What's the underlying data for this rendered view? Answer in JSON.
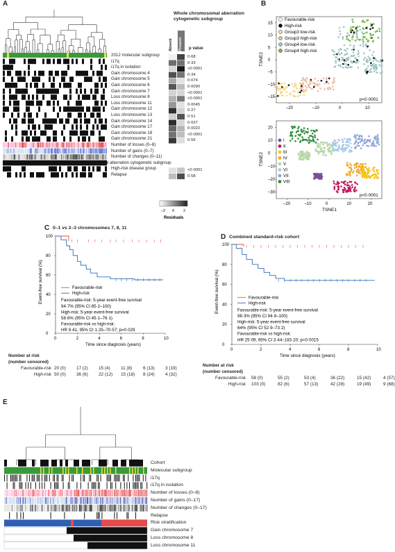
{
  "panelA": {
    "letter": "A",
    "title": "Whole chromosomal aberration cytogenetic subgroup",
    "col_absent": "Absent",
    "col_present": "Present",
    "pvalue_header": "p value",
    "rows": [
      {
        "label": "2012 molecular subgroup",
        "p": "0·68"
      },
      {
        "label": "i17q",
        "p": "0·33"
      },
      {
        "label": "i17q in isolation",
        "p": "<0·0001"
      },
      {
        "label": "Gain chromosome 4",
        "p": "0·34"
      },
      {
        "label": "Gain chromosome 5",
        "p": "0·074"
      },
      {
        "label": "Gain chromosome 6",
        "p": "0·0090"
      },
      {
        "label": "Gain chromosome 7",
        "p": "<0·0001"
      },
      {
        "label": "Loss chromosome 8",
        "p": "<0·0001"
      },
      {
        "label": "Loss chromosome 11",
        "p": "0·0045"
      },
      {
        "label": "Gain chromosome 12",
        "p": "0·27"
      },
      {
        "label": "Loss chromosome 13",
        "p": "0·51"
      },
      {
        "label": "Gain chromosome 14",
        "p": "0·037"
      },
      {
        "label": "Gain chromosome 17",
        "p": "0·0022"
      },
      {
        "label": "Gain chromosome 18",
        "p": "<0·0001"
      },
      {
        "label": "Gain chromosome 21",
        "p": "0·56"
      }
    ],
    "extra_rows": [
      {
        "label": "Number of losses (0–8)"
      },
      {
        "label": "Number of gains (0–7)"
      },
      {
        "label": "Number of changes (0–11)"
      },
      {
        "label": "Whole chromosomal aberration cytogenetic subgroup"
      },
      {
        "label": "High-risk disease group",
        "p": "<0·0001"
      },
      {
        "label": "Relapse",
        "p": "0·58"
      }
    ],
    "legend_ticks": [
      "–2",
      "0",
      "2"
    ],
    "legend_title": "Residuals"
  },
  "panelB": {
    "letter": "B",
    "top": {
      "legend": [
        {
          "label": "Favourable-risk",
          "color": "#ffffff"
        },
        {
          "label": "High-risk",
          "color": "#111111"
        },
        {
          "label": "Group3 low-risk",
          "color": "#f6d98b"
        },
        {
          "label": "Group3 high-risk",
          "color": "#f0b8a0"
        },
        {
          "label": "Group4 low-risk",
          "color": "#9fc4c4"
        },
        {
          "label": "Group4 high-risk",
          "color": "#7ab648"
        }
      ],
      "ylabel": "TSNE2",
      "xticks": [
        "–20",
        "–10",
        "0",
        "10"
      ],
      "yticks": [
        "15",
        "10",
        "5",
        "0",
        "–5",
        "–10",
        "–15"
      ],
      "pvalue": "p<0·0001"
    },
    "bottom": {
      "legend": [
        {
          "label": "I",
          "color": "#7a4fa0"
        },
        {
          "label": "II",
          "color": "#c2185b"
        },
        {
          "label": "III",
          "color": "#f5c518"
        },
        {
          "label": "IV",
          "color": "#f5a623"
        },
        {
          "label": "V",
          "color": "#b7d7a8"
        },
        {
          "label": "VI",
          "color": "#a8c8e8"
        },
        {
          "label": "VII",
          "color": "#8fa6d6"
        },
        {
          "label": "VIII",
          "color": "#2e8b3a"
        }
      ],
      "ylabel": "TSNE2",
      "xlabel": "TSNE1",
      "xticks": [
        "–20",
        "–10",
        "0",
        "10",
        "20"
      ],
      "yticks": [
        "20",
        "10",
        "0",
        "–10",
        "–20",
        "–30"
      ],
      "pvalue": "p<0·0001"
    }
  },
  "panelC": {
    "letter": "C",
    "title": "0–1 vs 2–3 chromosomes 7, 8, 11",
    "ylabel": "Event-free survival (%)",
    "xlabel": "Time since diagnosis (years)",
    "yticks": [
      "100",
      "80",
      "60",
      "40",
      "20",
      "0"
    ],
    "xticks": [
      "0",
      "2",
      "4",
      "6",
      "8",
      "10"
    ],
    "legend": [
      {
        "label": "Favourable-risk",
        "color": "#e84a4a"
      },
      {
        "label": "High-risk",
        "color": "#2f6db5"
      }
    ],
    "text": [
      "Favourable-risk: 5-year event-free survival",
      "94·7% (95% CI 85·2–100)",
      "High-risk: 5-year event-free survival",
      "58·6% (95% CI 45·1–76·1)",
      "Favourable-risk vs high-risk:",
      "HR 9·41, 95% CI 1·25–70·57; p=0·029"
    ],
    "risk_header": [
      "Number at risk",
      "(number censored)"
    ],
    "risk_rows": [
      {
        "label": "Favourable-risk",
        "values": [
          "20 (0)",
          "17 (2)",
          "15 (4)",
          "11 (8)",
          "6 (13)",
          "3 (19)"
        ]
      },
      {
        "label": "High-risk",
        "values": [
          "50 (0)",
          "36 (6)",
          "22 (12)",
          "15 (18)",
          "8 (24)",
          "4 (32)"
        ]
      }
    ]
  },
  "panelD": {
    "letter": "D",
    "title": "Combined standard-risk cohort",
    "ylabel": "Event-free survival (%)",
    "xlabel": "Time since diagnosis (years)",
    "yticks": [
      "100",
      "80",
      "60",
      "40",
      "20",
      "0"
    ],
    "xticks": [
      "0",
      "2",
      "4",
      "6",
      "8",
      "10"
    ],
    "legend": [
      {
        "label": "Favourable-risk",
        "color": "#e84a4a"
      },
      {
        "label": "High-risk",
        "color": "#2f6db5"
      }
    ],
    "text": [
      "Favourable-risk: 5-year event-free survival",
      "98·3% (95% CI 94·9–100)",
      "High-risk: 5-year event-free survival",
      "64% (95% CI 52·9–73·2)",
      "Favourable-risk vs high-risk:",
      "HR 25·09, 95% CI 3·44–183·20; p=0·0015"
    ],
    "risk_header": [
      "Number at risk",
      "(number censored)"
    ],
    "risk_rows": [
      {
        "label": "Favourable-risk",
        "values": [
          "58 (0)",
          "55 (2)",
          "53 (4)",
          "36 (22)",
          "15 (42)",
          "4 (57)"
        ]
      },
      {
        "label": "High-risk",
        "values": [
          "103 (0)",
          "82 (6)",
          "57 (13)",
          "42 (28)",
          "19 (49)",
          "9 (68)"
        ]
      }
    ]
  },
  "panelE": {
    "letter": "E",
    "rows": [
      "Cohort",
      "Molecular subgroup",
      "i17q",
      "i17q in isolation",
      "Number of losses (0–8)",
      "Number of gains (0–17)",
      "Number of changes (0–17)",
      "Relapse",
      "Risk stratification",
      "Gain chromosome 7",
      "Loss chromosome 8",
      "Loss chromosome 11"
    ]
  },
  "colors": {
    "favourable": "#e84a4a",
    "high": "#2f6db5",
    "green": "#3a9a3a",
    "yellow": "#f2e03a"
  }
}
